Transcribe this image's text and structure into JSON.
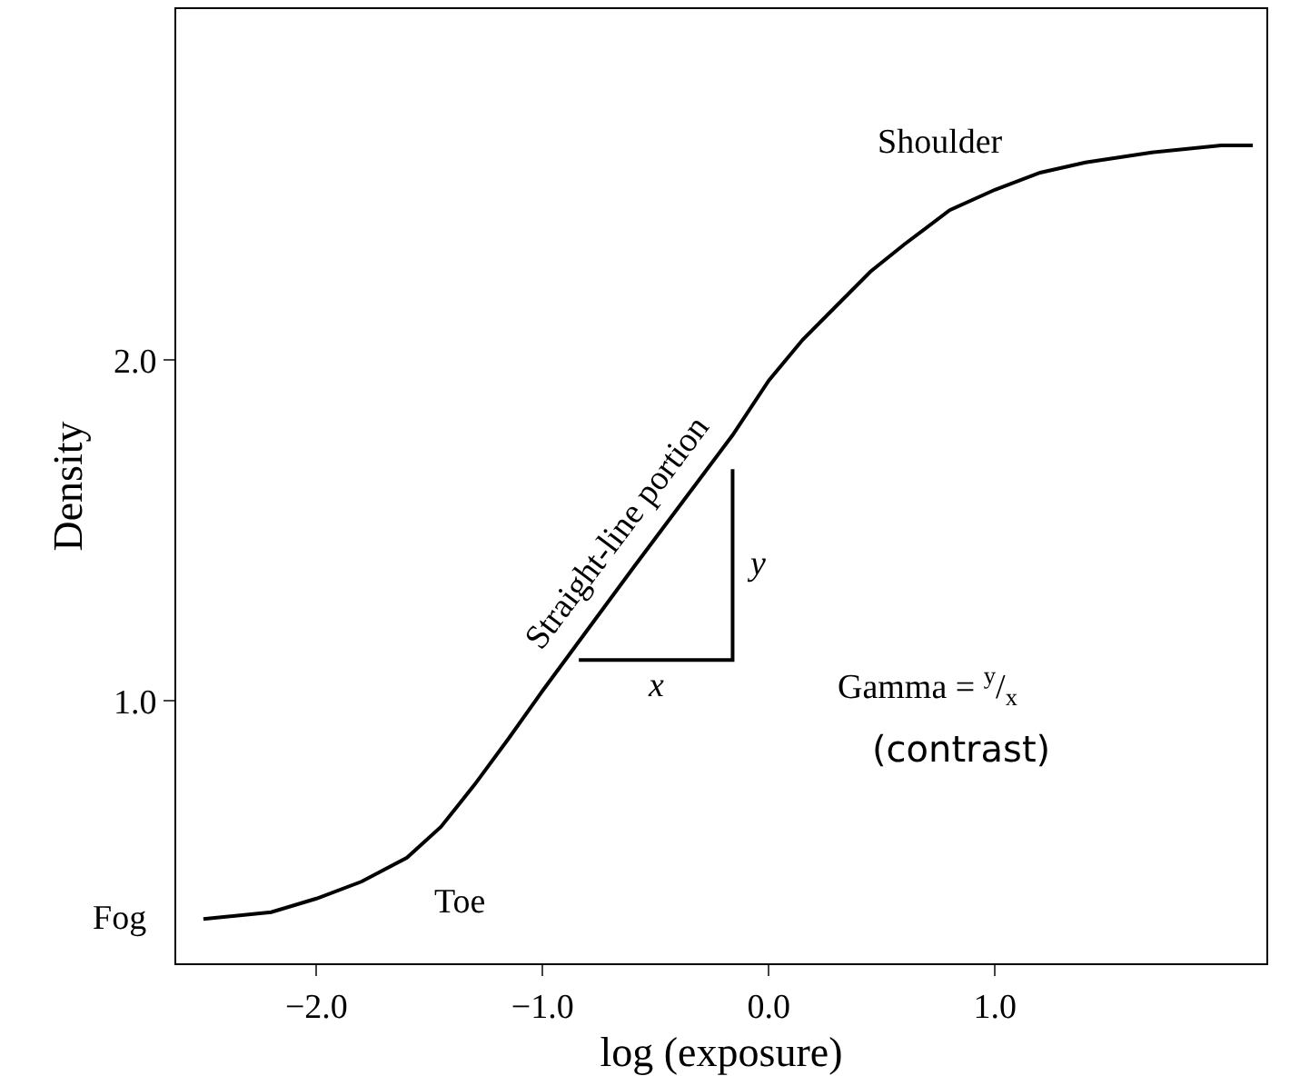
{
  "chart_data": {
    "type": "line",
    "xlabel": "log (exposure)",
    "ylabel": "Density",
    "xlim": [
      -2.62,
      2.2
    ],
    "ylim": [
      0.23,
      3.03
    ],
    "xticks": [
      {
        "value": -2,
        "label": "−2.0"
      },
      {
        "value": -1,
        "label": "−1.0"
      },
      {
        "value": 0,
        "label": "0.0"
      },
      {
        "value": 1,
        "label": "1.0"
      }
    ],
    "yticks": [
      {
        "value": 1,
        "label": "1.0"
      },
      {
        "value": 2,
        "label": "2.0"
      }
    ],
    "grid": false,
    "marker": "none",
    "line_style": "solid",
    "series": [
      {
        "color": "#000000",
        "x": [
          -2.5,
          -2.2,
          -2.0,
          -1.8,
          -1.6,
          -1.45,
          -1.3,
          -1.15,
          -1.0,
          -0.6,
          -0.16,
          0.0,
          0.15,
          0.3,
          0.45,
          0.6,
          0.8,
          1.0,
          1.2,
          1.4,
          1.7,
          2.0,
          2.14
        ],
        "values": [
          0.36,
          0.38,
          0.42,
          0.47,
          0.54,
          0.63,
          0.755,
          0.89,
          1.03,
          1.39,
          1.78,
          1.94,
          2.06,
          2.16,
          2.26,
          2.34,
          2.44,
          2.5,
          2.55,
          2.58,
          2.61,
          2.63,
          2.63
        ]
      },
      {
        "color": "#000000",
        "x": [
          -0.84,
          -0.16,
          -0.16
        ],
        "values": [
          1.12,
          1.12,
          1.68
        ]
      }
    ],
    "annotations": [
      "Shoulder",
      "Straight-line portion",
      "Toe",
      "Fog",
      {
        "text": "x",
        "x": -0.5,
        "y": 1.12
      },
      {
        "text": "y",
        "x": -0.16,
        "y": 1.4
      },
      "Gamma = $^{y}$/$_{x}$",
      "(contrast)"
    ]
  }
}
